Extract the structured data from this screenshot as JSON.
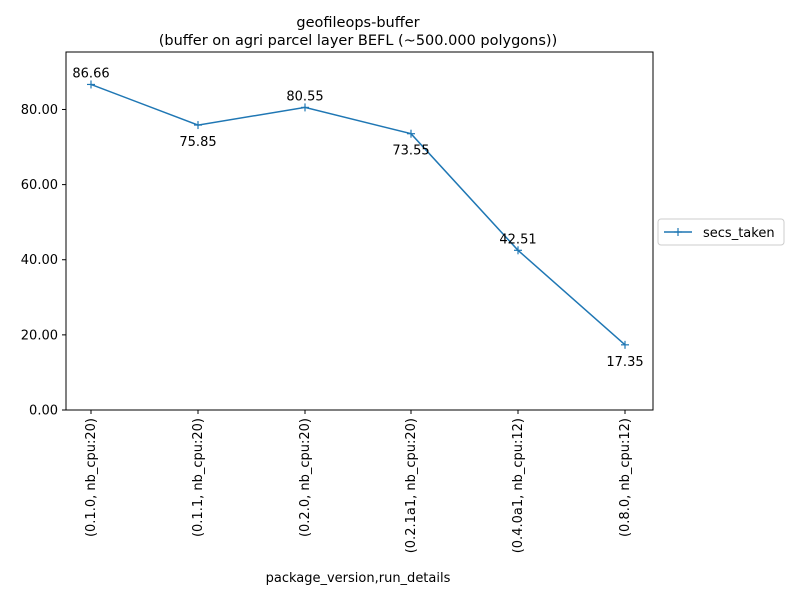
{
  "chart_data": {
    "type": "line",
    "title": "geofileops-buffer",
    "subtitle": "(buffer on agri parcel layer BEFL (~500.000 polygons))",
    "xlabel": "package_version,run_details",
    "ylabel": "",
    "categories": [
      "(0.1.0, nb_cpu:20)",
      "(0.1.1, nb_cpu:20)",
      "(0.2.0, nb_cpu:20)",
      "(0.2.1a1, nb_cpu:20)",
      "(0.4.0a1, nb_cpu:12)",
      "(0.8.0, nb_cpu:12)"
    ],
    "series": [
      {
        "name": "secs_taken",
        "values": [
          86.66,
          75.85,
          80.55,
          73.55,
          42.51,
          17.35
        ],
        "color": "#1f77b4",
        "marker": "+"
      }
    ],
    "data_labels": [
      "86.66",
      "75.85",
      "80.55",
      "73.55",
      "42.51",
      "17.35"
    ],
    "ylim": [
      0,
      95.3
    ],
    "yticks": [
      0,
      20,
      40,
      60,
      80
    ],
    "ytick_labels": [
      "0.00",
      "20.00",
      "40.00",
      "60.00",
      "80.00"
    ],
    "grid": false,
    "legend_position": "right"
  }
}
